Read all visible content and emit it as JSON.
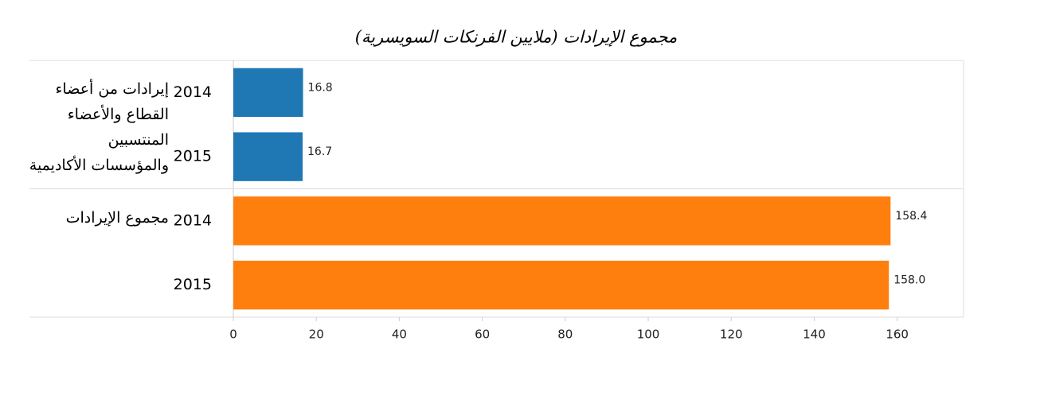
{
  "chart_data": {
    "type": "bar",
    "orientation": "horizontal",
    "title": "مجموع الإيرادات (ملايين الفرنكات السويسرية)",
    "groups": [
      {
        "name": "إيرادات من أعضاء القطاع والأعضاء المنتسبين والمؤسسات الأكاديمية",
        "color": "#1f77b4",
        "categories": [
          "2014",
          "2015"
        ],
        "values": [
          16.8,
          16.7
        ],
        "value_labels": [
          "16.8",
          "16.7"
        ]
      },
      {
        "name": "مجموع الإيرادات",
        "color": "#ff7f0e",
        "categories": [
          "2014",
          "2015"
        ],
        "values": [
          158.4,
          158.0
        ],
        "value_labels": [
          "158.4",
          "158.0"
        ]
      }
    ],
    "xlim": [
      0,
      176
    ],
    "xticks": [
      0,
      20,
      40,
      60,
      80,
      100,
      120,
      140,
      160
    ]
  }
}
